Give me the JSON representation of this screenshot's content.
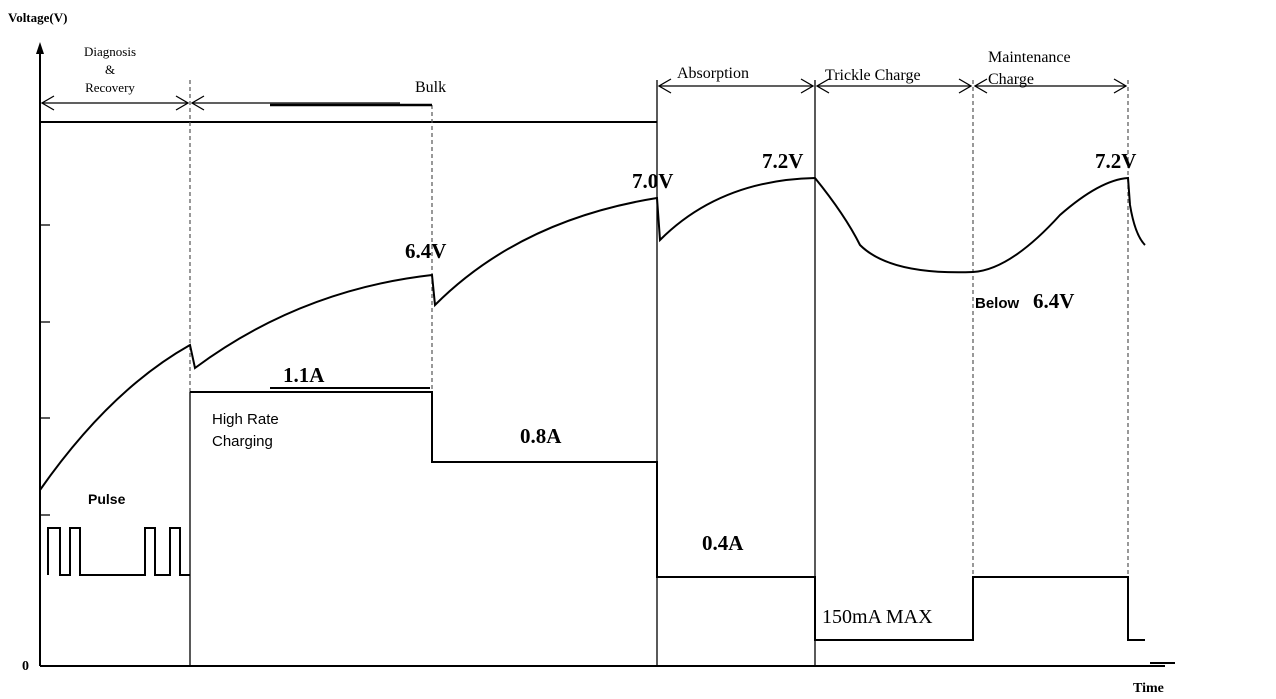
{
  "axes": {
    "y_label": "Voltage(V)",
    "origin": "0",
    "x_label": "Time"
  },
  "stages": [
    {
      "lines": [
        "Diagnosis",
        "&",
        "Recovery"
      ]
    },
    {
      "lines": [
        "Bulk"
      ]
    },
    {
      "lines": [
        "Absorption"
      ]
    },
    {
      "lines": [
        "Trickle Charge"
      ]
    },
    {
      "lines": [
        "Maintenance",
        "Charge"
      ]
    }
  ],
  "voltage_labels": [
    "6.4V",
    "7.0V",
    "7.2V",
    "7.2V"
  ],
  "below_label": [
    "Below",
    "6.4V"
  ],
  "current_labels": {
    "pulse": "Pulse",
    "high_rate": [
      "High Rate",
      "Charging"
    ],
    "bulk_high": "1.1A",
    "bulk_low": "0.8A",
    "absorption": "0.4A",
    "trickle": "150mA MAX"
  }
}
